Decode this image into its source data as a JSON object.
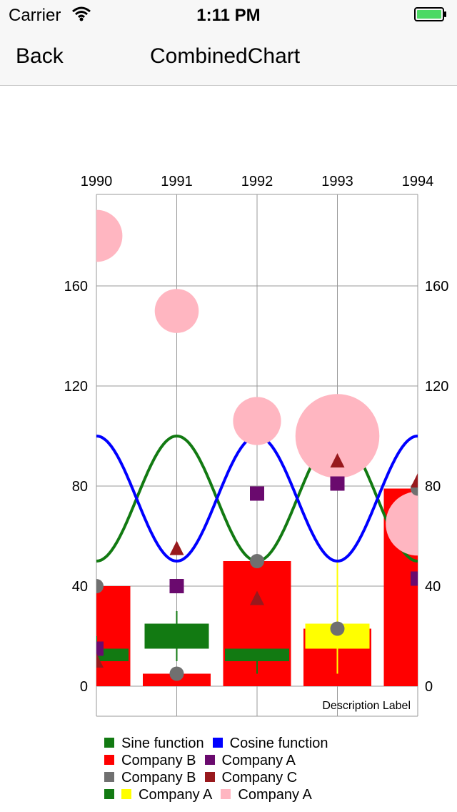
{
  "status": {
    "carrier": "Carrier",
    "time": "1:11 PM"
  },
  "nav": {
    "back_label": "Back",
    "title": "CombinedChart"
  },
  "colors": {
    "sine": "#127a12",
    "cosine": "#0000ff",
    "bar": "#ff0000",
    "scatter_square": "#6a0a6e",
    "scatter_circle": "#707070",
    "scatter_triangle": "#98191d",
    "candle": "#127a12",
    "candle_up": "#ffff00",
    "bubble": "#ffb6c1",
    "grid": "#999999"
  },
  "chart_data": {
    "type": "combined",
    "categories": [
      "1990",
      "1991",
      "1992",
      "1993",
      "1994"
    ],
    "x_range": [
      0,
      4
    ],
    "ylim": [
      0,
      200
    ],
    "y_ticks": [
      0,
      40,
      80,
      120,
      160
    ],
    "y_tick_labels": [
      "0",
      "40",
      "80",
      "120",
      "160"
    ],
    "grid": true,
    "description": "Description Label",
    "legend_position": "bottom-left",
    "lines": [
      {
        "name": "Sine function",
        "color": "#127a12",
        "form": "75 - 25*cos(pi*x)"
      },
      {
        "name": "Cosine function",
        "color": "#0000ff",
        "form": "75 + 25*cos(pi*x)"
      }
    ],
    "bars": {
      "name": "Company B",
      "color": "#ff0000",
      "x": [
        0,
        1,
        2,
        3,
        4
      ],
      "values": [
        40,
        5,
        50,
        23,
        79
      ]
    },
    "scatter": [
      {
        "name": "Company A",
        "shape": "square",
        "color": "#6a0a6e",
        "x": [
          0,
          1,
          2,
          3,
          4
        ],
        "values": [
          15,
          40,
          77,
          81,
          43
        ]
      },
      {
        "name": "Company B",
        "shape": "circle",
        "color": "#707070",
        "x": [
          0,
          1,
          2,
          3,
          4
        ],
        "values": [
          40,
          5,
          50,
          23,
          79
        ]
      },
      {
        "name": "Company C",
        "shape": "triangle",
        "color": "#98191d",
        "x": [
          0,
          1,
          2,
          3,
          4
        ],
        "values": [
          10,
          55,
          35,
          90,
          82
        ]
      }
    ],
    "candles": {
      "name": "Company A",
      "x": [
        0,
        1,
        2,
        3
      ],
      "open": [
        15,
        25,
        15,
        15
      ],
      "close": [
        10,
        15,
        10,
        25
      ],
      "high": [
        20,
        30,
        15,
        50
      ],
      "low": [
        10,
        10,
        5,
        5
      ]
    },
    "bubbles": {
      "name": "Company A",
      "color": "#ffb6c1",
      "x": [
        0,
        1,
        2,
        3,
        4
      ],
      "values": [
        180,
        150,
        106,
        100,
        65
      ],
      "size": [
        1.3,
        1.1,
        1.2,
        2.1,
        1.6
      ]
    },
    "legend": [
      {
        "label": "Sine function",
        "colors": [
          "#127a12"
        ]
      },
      {
        "label": "Cosine function",
        "colors": [
          "#0000ff"
        ]
      },
      {
        "label": "Company B",
        "colors": [
          "#ff0000"
        ]
      },
      {
        "label": "Company A",
        "colors": [
          "#6a0a6e"
        ]
      },
      {
        "label": "Company B",
        "colors": [
          "#707070"
        ]
      },
      {
        "label": "Company C",
        "colors": [
          "#98191d"
        ]
      },
      {
        "label": "Company A",
        "colors": [
          "#127a12",
          "#ffff00"
        ]
      },
      {
        "label": "Company A",
        "colors": [
          "#ffb6c1"
        ]
      }
    ]
  }
}
